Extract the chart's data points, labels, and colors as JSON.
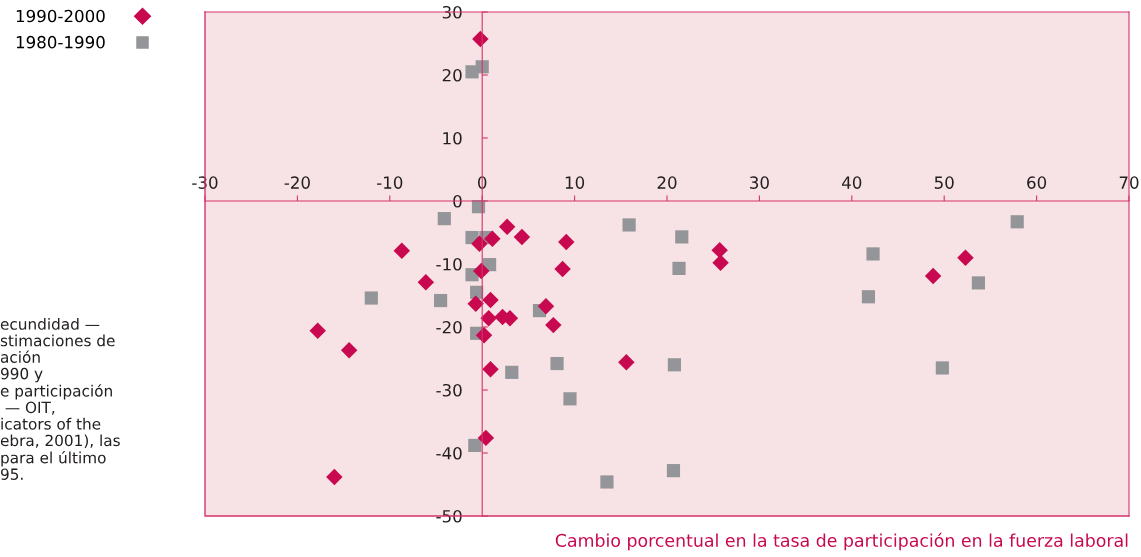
{
  "chart_data": {
    "type": "scatter",
    "xlabel": "Cambio porcentual en la tasa de participación en la fuerza laboral",
    "xlim": [
      -30,
      70
    ],
    "xticks": [
      -30,
      -20,
      -10,
      0,
      10,
      20,
      30,
      40,
      50,
      60,
      70
    ],
    "ylim": [
      -50,
      30
    ],
    "yticks": [
      -50,
      -40,
      -30,
      -20,
      -10,
      0,
      10,
      20,
      30
    ],
    "grid": false,
    "legend": "top left",
    "annotations": [
      "ecundidad —\nstimaciones de\nación\n990 y\ne participación\n — OIT,\nicators of the\nebra, 2001), las\npara el último\n95."
    ],
    "series": [
      {
        "name": "1990-2000",
        "color": "#c8084f",
        "marker": "diamond",
        "x": [
          -0.2,
          -8.7,
          -6.1,
          -17.8,
          -14.4,
          -16.0,
          -0.3,
          1.1,
          2.7,
          4.3,
          9.1,
          -0.1,
          8.7,
          -0.7,
          0.9,
          0.7,
          2.2,
          3.0,
          6.9,
          7.7,
          0.2,
          0.9,
          15.6,
          0.4,
          25.7,
          25.8,
          52.3,
          48.8
        ],
        "values": [
          25.7,
          -7.9,
          -12.9,
          -20.6,
          -23.7,
          -43.8,
          -6.8,
          -6.0,
          -4.1,
          -5.7,
          -6.5,
          -11.1,
          -10.8,
          -16.3,
          -15.7,
          -18.6,
          -18.4,
          -18.6,
          -16.7,
          -19.7,
          -21.3,
          -26.7,
          -25.6,
          -37.6,
          -7.8,
          -9.8,
          -9.0,
          -11.9
        ]
      },
      {
        "name": "1980-1990",
        "color": "#939598",
        "marker": "square",
        "x": [
          0.0,
          -1.1,
          -0.4,
          -4.1,
          -1.1,
          0.4,
          0.8,
          -1.1,
          -0.6,
          -4.5,
          6.2,
          -0.6,
          8.1,
          3.2,
          9.5,
          -0.8,
          13.5,
          -12.0,
          15.9,
          21.6,
          21.3,
          42.3,
          41.8,
          53.7,
          57.9,
          20.8,
          49.8,
          20.7
        ],
        "values": [
          21.3,
          20.5,
          -0.9,
          -2.8,
          -5.8,
          -5.8,
          -10.1,
          -11.7,
          -14.5,
          -15.8,
          -17.4,
          -21.0,
          -25.8,
          -27.2,
          -31.4,
          -38.8,
          -44.6,
          -15.4,
          -3.8,
          -5.7,
          -10.7,
          -8.4,
          -15.2,
          -13.0,
          -3.3,
          -26.0,
          -26.5,
          -42.8
        ]
      }
    ]
  }
}
